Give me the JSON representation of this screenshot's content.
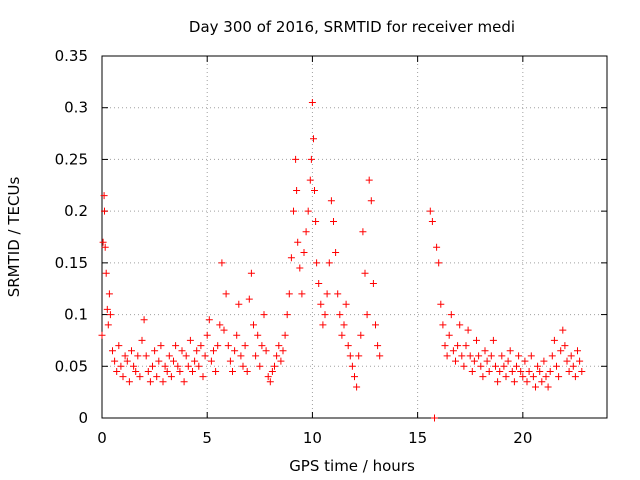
{
  "chart_data": {
    "type": "scatter",
    "title": "Day 300 of 2016, SRMTID for receiver medi",
    "xlabel": "GPS time / hours",
    "ylabel": "SRMTID / TECUs",
    "xlim": [
      0,
      24
    ],
    "ylim": [
      0,
      0.35
    ],
    "xticks": [
      0,
      5,
      10,
      15,
      20
    ],
    "yticks": [
      0,
      0.05,
      0.1,
      0.15,
      0.2,
      0.25,
      0.3,
      0.35
    ],
    "xtick_labels": [
      "0",
      "5",
      "10",
      "15",
      "20"
    ],
    "ytick_labels": [
      "0",
      "0.05",
      "0.1",
      "0.15",
      "0.2",
      "0.25",
      "0.3",
      "0.35"
    ],
    "grid": true,
    "marker": "+",
    "color": "#ff0000",
    "series": [
      {
        "name": "SRMTID",
        "x": [
          0.0,
          0.05,
          0.1,
          0.12,
          0.15,
          0.2,
          0.25,
          0.3,
          0.35,
          0.4,
          0.5,
          0.6,
          0.7,
          0.8,
          0.9,
          1.0,
          1.1,
          1.2,
          1.3,
          1.4,
          1.5,
          1.6,
          1.7,
          1.8,
          1.9,
          2.0,
          2.1,
          2.2,
          2.3,
          2.4,
          2.5,
          2.6,
          2.7,
          2.8,
          2.9,
          3.0,
          3.1,
          3.2,
          3.3,
          3.4,
          3.5,
          3.6,
          3.7,
          3.8,
          3.9,
          4.0,
          4.1,
          4.2,
          4.3,
          4.4,
          4.5,
          4.6,
          4.7,
          4.8,
          4.9,
          5.0,
          5.1,
          5.2,
          5.3,
          5.4,
          5.5,
          5.6,
          5.7,
          5.8,
          5.9,
          6.0,
          6.1,
          6.2,
          6.3,
          6.4,
          6.5,
          6.6,
          6.7,
          6.8,
          6.9,
          7.0,
          7.1,
          7.2,
          7.3,
          7.4,
          7.5,
          7.6,
          7.7,
          7.8,
          7.9,
          8.0,
          8.1,
          8.2,
          8.3,
          8.4,
          8.5,
          8.6,
          8.7,
          8.8,
          8.9,
          9.0,
          9.1,
          9.2,
          9.25,
          9.3,
          9.4,
          9.5,
          9.6,
          9.7,
          9.8,
          9.9,
          9.95,
          10.0,
          10.05,
          10.1,
          10.15,
          10.2,
          10.3,
          10.4,
          10.5,
          10.6,
          10.7,
          10.8,
          10.9,
          11.0,
          11.1,
          11.2,
          11.3,
          11.4,
          11.5,
          11.6,
          11.7,
          11.8,
          11.9,
          12.0,
          12.1,
          12.2,
          12.3,
          12.4,
          12.5,
          12.6,
          12.7,
          12.8,
          12.9,
          13.0,
          13.1,
          13.2,
          15.6,
          15.7,
          15.8,
          15.9,
          16.0,
          16.1,
          16.2,
          16.3,
          16.4,
          16.5,
          16.6,
          16.7,
          16.8,
          16.9,
          17.0,
          17.1,
          17.2,
          17.3,
          17.4,
          17.5,
          17.6,
          17.7,
          17.8,
          17.9,
          18.0,
          18.1,
          18.2,
          18.3,
          18.4,
          18.5,
          18.6,
          18.7,
          18.8,
          18.9,
          19.0,
          19.1,
          19.2,
          19.3,
          19.4,
          19.5,
          19.6,
          19.7,
          19.8,
          19.9,
          20.0,
          20.1,
          20.2,
          20.3,
          20.4,
          20.5,
          20.6,
          20.7,
          20.8,
          20.9,
          21.0,
          21.1,
          21.2,
          21.3,
          21.4,
          21.5,
          21.6,
          21.7,
          21.8,
          21.9,
          22.0,
          22.1,
          22.2,
          22.3,
          22.4,
          22.5,
          22.6,
          22.7,
          22.8
        ],
        "y": [
          0.08,
          0.17,
          0.215,
          0.2,
          0.165,
          0.14,
          0.105,
          0.09,
          0.12,
          0.1,
          0.065,
          0.055,
          0.045,
          0.07,
          0.05,
          0.04,
          0.06,
          0.055,
          0.035,
          0.065,
          0.05,
          0.045,
          0.06,
          0.04,
          0.075,
          0.095,
          0.06,
          0.045,
          0.035,
          0.05,
          0.065,
          0.04,
          0.055,
          0.07,
          0.035,
          0.05,
          0.045,
          0.06,
          0.04,
          0.055,
          0.07,
          0.05,
          0.045,
          0.065,
          0.035,
          0.06,
          0.05,
          0.075,
          0.045,
          0.055,
          0.065,
          0.05,
          0.07,
          0.04,
          0.06,
          0.08,
          0.095,
          0.055,
          0.065,
          0.045,
          0.07,
          0.09,
          0.15,
          0.085,
          0.12,
          0.07,
          0.055,
          0.045,
          0.065,
          0.08,
          0.11,
          0.06,
          0.05,
          0.07,
          0.045,
          0.115,
          0.14,
          0.09,
          0.06,
          0.08,
          0.05,
          0.07,
          0.1,
          0.065,
          0.04,
          0.035,
          0.045,
          0.05,
          0.06,
          0.07,
          0.055,
          0.065,
          0.08,
          0.1,
          0.12,
          0.155,
          0.2,
          0.25,
          0.22,
          0.17,
          0.145,
          0.12,
          0.16,
          0.18,
          0.2,
          0.23,
          0.25,
          0.305,
          0.27,
          0.22,
          0.19,
          0.15,
          0.13,
          0.11,
          0.09,
          0.1,
          0.12,
          0.15,
          0.21,
          0.19,
          0.16,
          0.12,
          0.1,
          0.08,
          0.09,
          0.11,
          0.07,
          0.06,
          0.05,
          0.04,
          0.03,
          0.06,
          0.08,
          0.18,
          0.14,
          0.1,
          0.23,
          0.21,
          0.13,
          0.09,
          0.07,
          0.06,
          0.2,
          0.19,
          0.0,
          0.165,
          0.15,
          0.11,
          0.09,
          0.07,
          0.06,
          0.08,
          0.1,
          0.065,
          0.055,
          0.07,
          0.09,
          0.06,
          0.05,
          0.07,
          0.085,
          0.06,
          0.045,
          0.055,
          0.075,
          0.06,
          0.05,
          0.04,
          0.065,
          0.055,
          0.045,
          0.06,
          0.075,
          0.05,
          0.035,
          0.045,
          0.06,
          0.05,
          0.04,
          0.055,
          0.065,
          0.045,
          0.035,
          0.05,
          0.06,
          0.045,
          0.04,
          0.055,
          0.035,
          0.045,
          0.06,
          0.04,
          0.03,
          0.05,
          0.045,
          0.035,
          0.055,
          0.04,
          0.03,
          0.045,
          0.06,
          0.075,
          0.05,
          0.04,
          0.065,
          0.085,
          0.07,
          0.055,
          0.045,
          0.06,
          0.05,
          0.04,
          0.065,
          0.055,
          0.045
        ]
      }
    ]
  }
}
